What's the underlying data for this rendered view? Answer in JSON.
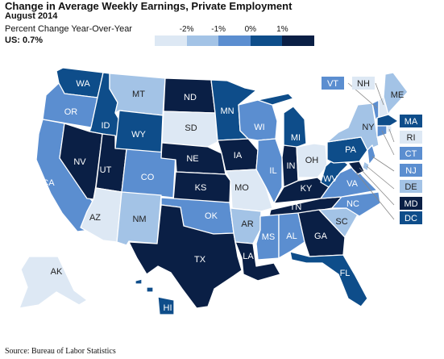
{
  "header": {
    "title": "Change in Average Weekly Earnings, Private Employment",
    "subtitle": "August 2014",
    "measure": "Percent Change Year-Over-Year",
    "us_value": "US: 0.7%"
  },
  "legend": {
    "ticks": [
      "-2%",
      "-1%",
      "0%",
      "1%"
    ],
    "colors": [
      "#dde8f4",
      "#a3c3e6",
      "#5b8ed0",
      "#0e4d8a",
      "#0a1f45"
    ]
  },
  "source": "Source: Bureau of Labor Statistics",
  "map_data": {
    "type": "choropleth",
    "color_classes": [
      "lowest",
      "low",
      "mid",
      "high",
      "highest"
    ],
    "states": [
      {
        "abbr": "WA",
        "class": 3
      },
      {
        "abbr": "OR",
        "class": 2
      },
      {
        "abbr": "CA",
        "class": 2
      },
      {
        "abbr": "ID",
        "class": 3
      },
      {
        "abbr": "NV",
        "class": 4
      },
      {
        "abbr": "MT",
        "class": 1
      },
      {
        "abbr": "WY",
        "class": 3
      },
      {
        "abbr": "UT",
        "class": 4
      },
      {
        "abbr": "AZ",
        "class": 0
      },
      {
        "abbr": "CO",
        "class": 2
      },
      {
        "abbr": "NM",
        "class": 1
      },
      {
        "abbr": "ND",
        "class": 4
      },
      {
        "abbr": "SD",
        "class": 0
      },
      {
        "abbr": "NE",
        "class": 4
      },
      {
        "abbr": "KS",
        "class": 4
      },
      {
        "abbr": "OK",
        "class": 2
      },
      {
        "abbr": "TX",
        "class": 4
      },
      {
        "abbr": "MN",
        "class": 3
      },
      {
        "abbr": "IA",
        "class": 4
      },
      {
        "abbr": "MO",
        "class": 0
      },
      {
        "abbr": "AR",
        "class": 1
      },
      {
        "abbr": "LA",
        "class": 4
      },
      {
        "abbr": "WI",
        "class": 2
      },
      {
        "abbr": "IL",
        "class": 2
      },
      {
        "abbr": "MI",
        "class": 3
      },
      {
        "abbr": "IN",
        "class": 4
      },
      {
        "abbr": "OH",
        "class": 0
      },
      {
        "abbr": "KY",
        "class": 4
      },
      {
        "abbr": "TN",
        "class": 4
      },
      {
        "abbr": "MS",
        "class": 2
      },
      {
        "abbr": "AL",
        "class": 2
      },
      {
        "abbr": "GA",
        "class": 4
      },
      {
        "abbr": "FL",
        "class": 3
      },
      {
        "abbr": "SC",
        "class": 1
      },
      {
        "abbr": "NC",
        "class": 2
      },
      {
        "abbr": "VA",
        "class": 2
      },
      {
        "abbr": "WV",
        "class": 3
      },
      {
        "abbr": "PA",
        "class": 3
      },
      {
        "abbr": "NY",
        "class": 1
      },
      {
        "abbr": "VT",
        "class": 2
      },
      {
        "abbr": "NH",
        "class": 0
      },
      {
        "abbr": "ME",
        "class": 1
      },
      {
        "abbr": "MA",
        "class": 3
      },
      {
        "abbr": "RI",
        "class": 0
      },
      {
        "abbr": "CT",
        "class": 2
      },
      {
        "abbr": "NJ",
        "class": 2
      },
      {
        "abbr": "DE",
        "class": 1
      },
      {
        "abbr": "MD",
        "class": 4
      },
      {
        "abbr": "DC",
        "class": 3
      },
      {
        "abbr": "AK",
        "class": 0
      },
      {
        "abbr": "HI",
        "class": 3
      }
    ]
  }
}
